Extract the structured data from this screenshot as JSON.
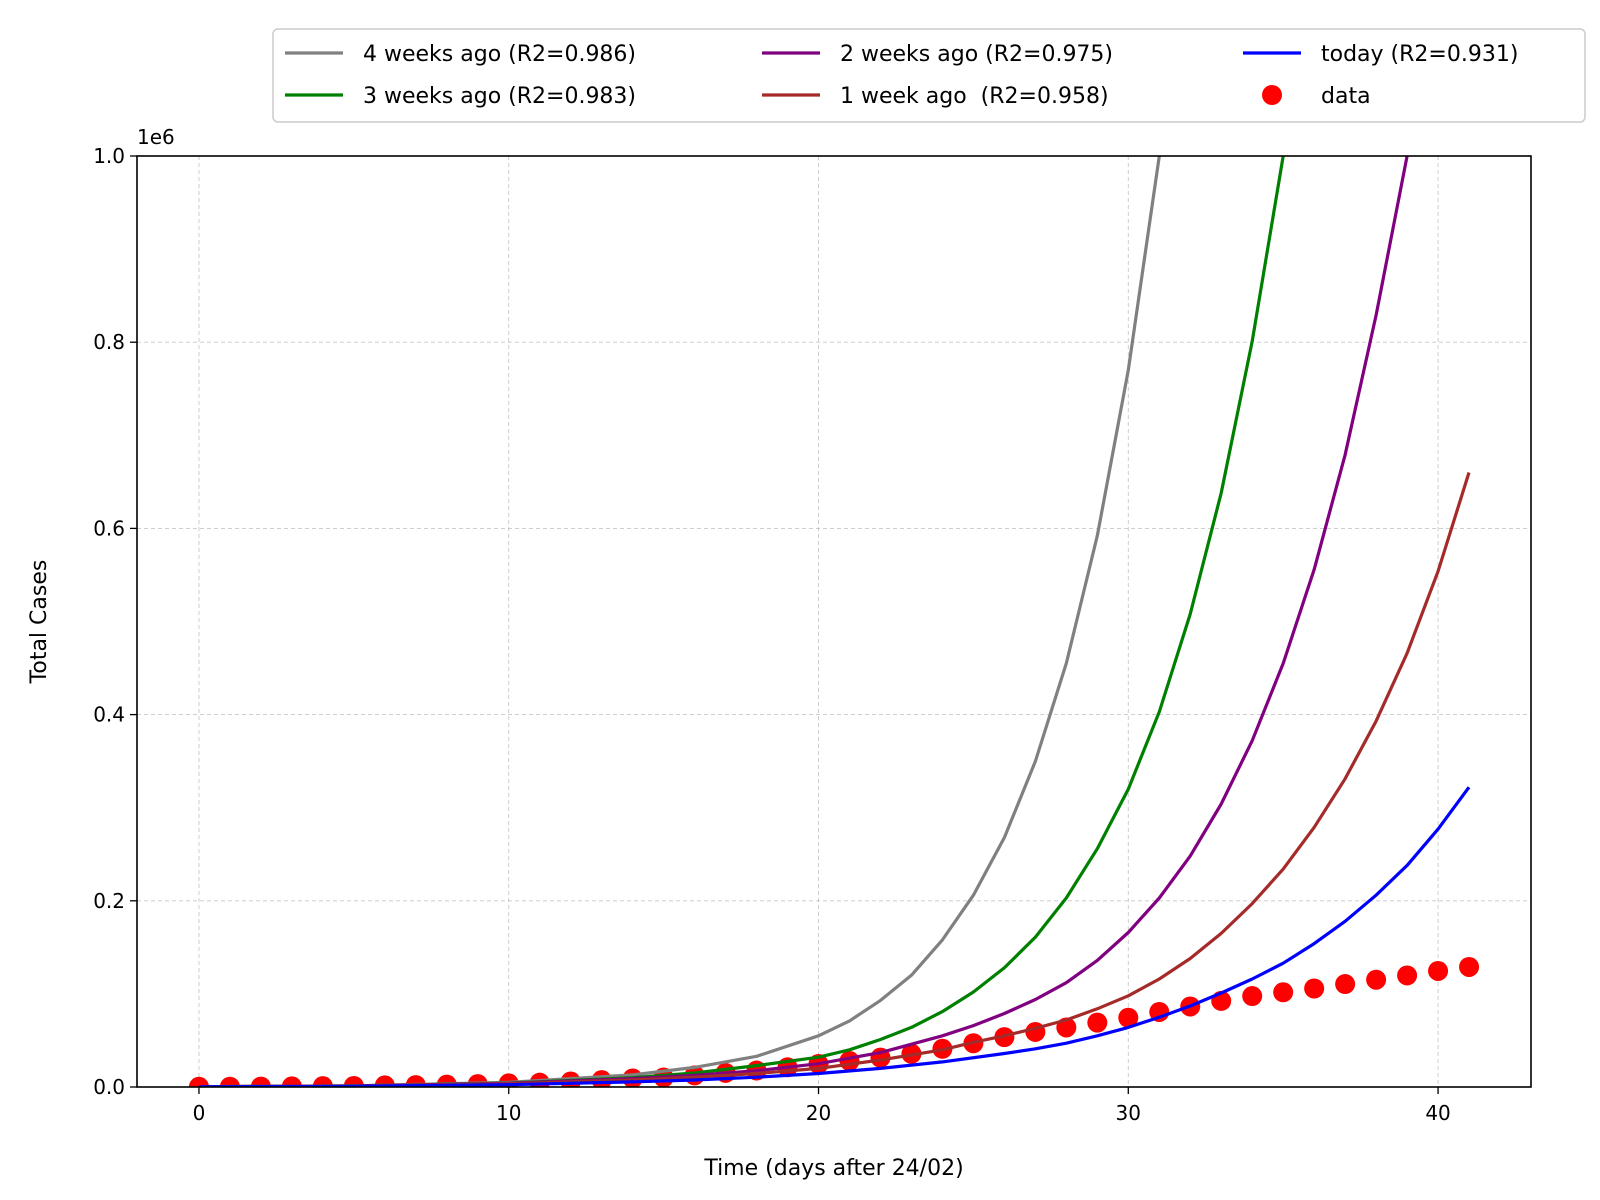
{
  "chart_data": {
    "type": "line",
    "xlabel": "Time (days after 24/02)",
    "ylabel": "Total Cases",
    "y_scale_label": "1e6",
    "xlim": [
      -2,
      43
    ],
    "ylim": [
      0,
      1000000
    ],
    "x_ticks": [
      0,
      10,
      20,
      30,
      40
    ],
    "y_ticks": [
      0,
      200000,
      400000,
      600000,
      800000,
      1000000
    ],
    "y_tick_labels": [
      "0.0",
      "0.2",
      "0.4",
      "0.6",
      "0.8",
      "1.0"
    ],
    "grid": true,
    "legend_position": "top, above plot",
    "series": [
      {
        "name": "4 weeks ago (R2=0.986)",
        "color": "#808080",
        "kind": "line",
        "x": [
          0,
          5,
          10,
          14,
          16,
          18,
          20,
          21,
          22,
          23,
          24,
          25,
          26,
          27,
          28,
          29,
          30,
          31
        ],
        "y": [
          300,
          1300,
          5000,
          13000,
          21000,
          33000,
          55000,
          71000,
          93000,
          120000,
          158000,
          206000,
          268000,
          350000,
          455000,
          592000,
          770000,
          1000000
        ]
      },
      {
        "name": "3 weeks ago (R2=0.983)",
        "color": "#008000",
        "kind": "line",
        "x": [
          0,
          5,
          10,
          14,
          16,
          18,
          20,
          21,
          22,
          23,
          24,
          25,
          26,
          27,
          28,
          29,
          30,
          31,
          32,
          33,
          34,
          35
        ],
        "y": [
          300,
          1200,
          4200,
          10000,
          15000,
          23000,
          32000,
          40000,
          51000,
          64000,
          81000,
          102000,
          128000,
          161000,
          203000,
          256000,
          320000,
          403000,
          508000,
          638000,
          801000,
          1000000
        ]
      },
      {
        "name": "2 weeks ago (R2=0.975)",
        "color": "#800080",
        "kind": "line",
        "x": [
          0,
          5,
          10,
          14,
          16,
          18,
          20,
          22,
          24,
          25,
          26,
          27,
          28,
          29,
          30,
          31,
          32,
          33,
          34,
          35,
          36,
          37,
          38,
          39
        ],
        "y": [
          300,
          1100,
          4000,
          9000,
          12500,
          17500,
          25000,
          37000,
          55000,
          66000,
          79000,
          94000,
          112000,
          136000,
          166000,
          203000,
          248000,
          304000,
          372000,
          455000,
          556000,
          679000,
          829000,
          1000000
        ]
      },
      {
        "name": "1 week ago  (R2=0.958)",
        "color": "#A52A2A",
        "kind": "line",
        "x": [
          0,
          5,
          10,
          14,
          16,
          18,
          20,
          22,
          24,
          25,
          26,
          27,
          28,
          29,
          30,
          31,
          32,
          33,
          34,
          35,
          36,
          37,
          38,
          39,
          40,
          41
        ],
        "y": [
          300,
          1000,
          3500,
          7500,
          10500,
          14500,
          20000,
          29000,
          40000,
          48000,
          55000,
          63000,
          72000,
          84000,
          98000,
          116000,
          138000,
          165000,
          197000,
          234000,
          279000,
          331000,
          393000,
          466000,
          554000,
          660000
        ]
      },
      {
        "name": "today (R2=0.931)",
        "color": "#0000FF",
        "kind": "line",
        "x": [
          0,
          5,
          10,
          14,
          16,
          18,
          20,
          22,
          24,
          26,
          27,
          28,
          29,
          30,
          31,
          32,
          33,
          34,
          35,
          36,
          37,
          38,
          39,
          40,
          41
        ],
        "y": [
          200,
          800,
          2500,
          5500,
          7500,
          10500,
          14500,
          20000,
          27000,
          36000,
          41000,
          47000,
          55000,
          64000,
          75000,
          87000,
          101000,
          116000,
          133000,
          154000,
          178000,
          206000,
          238000,
          277000,
          322000
        ]
      },
      {
        "name": "data",
        "color": "#FF0000",
        "kind": "scatter",
        "x": [
          0,
          1,
          2,
          3,
          4,
          5,
          6,
          7,
          8,
          9,
          10,
          11,
          12,
          13,
          14,
          15,
          16,
          17,
          18,
          19,
          20,
          21,
          22,
          23,
          24,
          25,
          26,
          27,
          28,
          29,
          30,
          31,
          32,
          33,
          34,
          35,
          36,
          37,
          38,
          39,
          40,
          41
        ],
        "y": [
          229,
          322,
          400,
          650,
          888,
          1128,
          1694,
          2036,
          2502,
          3089,
          3858,
          4636,
          5883,
          7375,
          9172,
          10149,
          12462,
          15113,
          17660,
          21157,
          24747,
          27980,
          31506,
          35713,
          41035,
          47021,
          53578,
          59138,
          63927,
          69176,
          74386,
          80589,
          86498,
          92472,
          97689,
          101739,
          105792,
          110574,
          115242,
          119827,
          124632,
          128948
        ]
      }
    ]
  }
}
